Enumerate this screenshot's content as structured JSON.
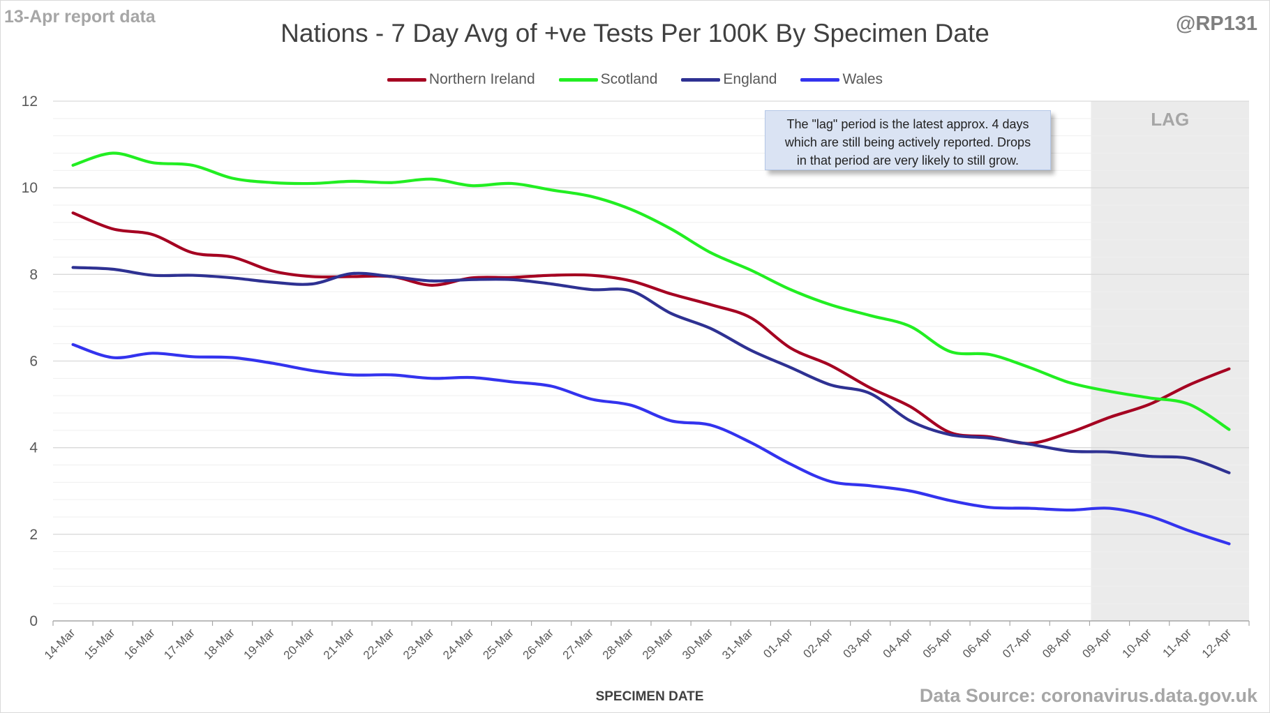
{
  "header": {
    "report_label": "13-Apr report data",
    "author_handle": "@RP131"
  },
  "footer": {
    "source": "Data Source: coronavirus.data.gov.uk"
  },
  "annotation": {
    "lines": [
      "The \"lag\" period is the latest approx. 4 days",
      "which are still being actively reported. Drops",
      "in that period are very likely to still grow."
    ]
  },
  "chart_data": {
    "type": "line",
    "title": "Nations - 7 Day Avg of +ve Tests Per 100K By Specimen Date",
    "xlabel": "SPECIMEN DATE",
    "ylabel": "",
    "ylim": [
      0,
      12
    ],
    "yticks": [
      0,
      2,
      4,
      6,
      8,
      10,
      12
    ],
    "grid": true,
    "legend": "top-center",
    "lag_region": {
      "label": "LAG",
      "from": "09-Apr",
      "to": "12-Apr"
    },
    "x": [
      "14-Mar",
      "15-Mar",
      "16-Mar",
      "17-Mar",
      "18-Mar",
      "19-Mar",
      "20-Mar",
      "21-Mar",
      "22-Mar",
      "23-Mar",
      "24-Mar",
      "25-Mar",
      "26-Mar",
      "27-Mar",
      "28-Mar",
      "29-Mar",
      "30-Mar",
      "31-Mar",
      "01-Apr",
      "02-Apr",
      "03-Apr",
      "04-Apr",
      "05-Apr",
      "06-Apr",
      "07-Apr",
      "08-Apr",
      "09-Apr",
      "10-Apr",
      "11-Apr",
      "12-Apr"
    ],
    "series": [
      {
        "name": "Northern Ireland",
        "color": "#a50021",
        "values": [
          9.42,
          9.05,
          8.92,
          8.5,
          8.4,
          8.08,
          7.95,
          7.95,
          7.95,
          7.75,
          7.92,
          7.93,
          7.98,
          7.98,
          7.85,
          7.55,
          7.3,
          7.0,
          6.3,
          5.9,
          5.38,
          4.95,
          4.35,
          4.25,
          4.1,
          4.35,
          4.7,
          5.0,
          5.45,
          5.82
        ]
      },
      {
        "name": "Scotland",
        "color": "#22ee22",
        "values": [
          10.52,
          10.8,
          10.58,
          10.52,
          10.22,
          10.12,
          10.1,
          10.15,
          10.12,
          10.2,
          10.05,
          10.1,
          9.95,
          9.8,
          9.5,
          9.05,
          8.5,
          8.1,
          7.65,
          7.3,
          7.05,
          6.8,
          6.22,
          6.15,
          5.85,
          5.5,
          5.3,
          5.15,
          5.0,
          4.42
        ]
      },
      {
        "name": "England",
        "color": "#2e3192",
        "values": [
          8.16,
          8.12,
          7.98,
          7.98,
          7.92,
          7.82,
          7.78,
          8.02,
          7.95,
          7.85,
          7.88,
          7.88,
          7.78,
          7.65,
          7.62,
          7.1,
          6.75,
          6.25,
          5.85,
          5.45,
          5.25,
          4.62,
          4.3,
          4.22,
          4.08,
          3.92,
          3.9,
          3.8,
          3.75,
          3.42
        ]
      },
      {
        "name": "Wales",
        "color": "#3333ee",
        "values": [
          6.38,
          6.08,
          6.18,
          6.1,
          6.08,
          5.95,
          5.78,
          5.68,
          5.68,
          5.6,
          5.62,
          5.52,
          5.42,
          5.12,
          4.98,
          4.62,
          4.52,
          4.12,
          3.62,
          3.22,
          3.12,
          3.0,
          2.78,
          2.62,
          2.6,
          2.56,
          2.6,
          2.42,
          2.08,
          1.78
        ]
      }
    ]
  }
}
